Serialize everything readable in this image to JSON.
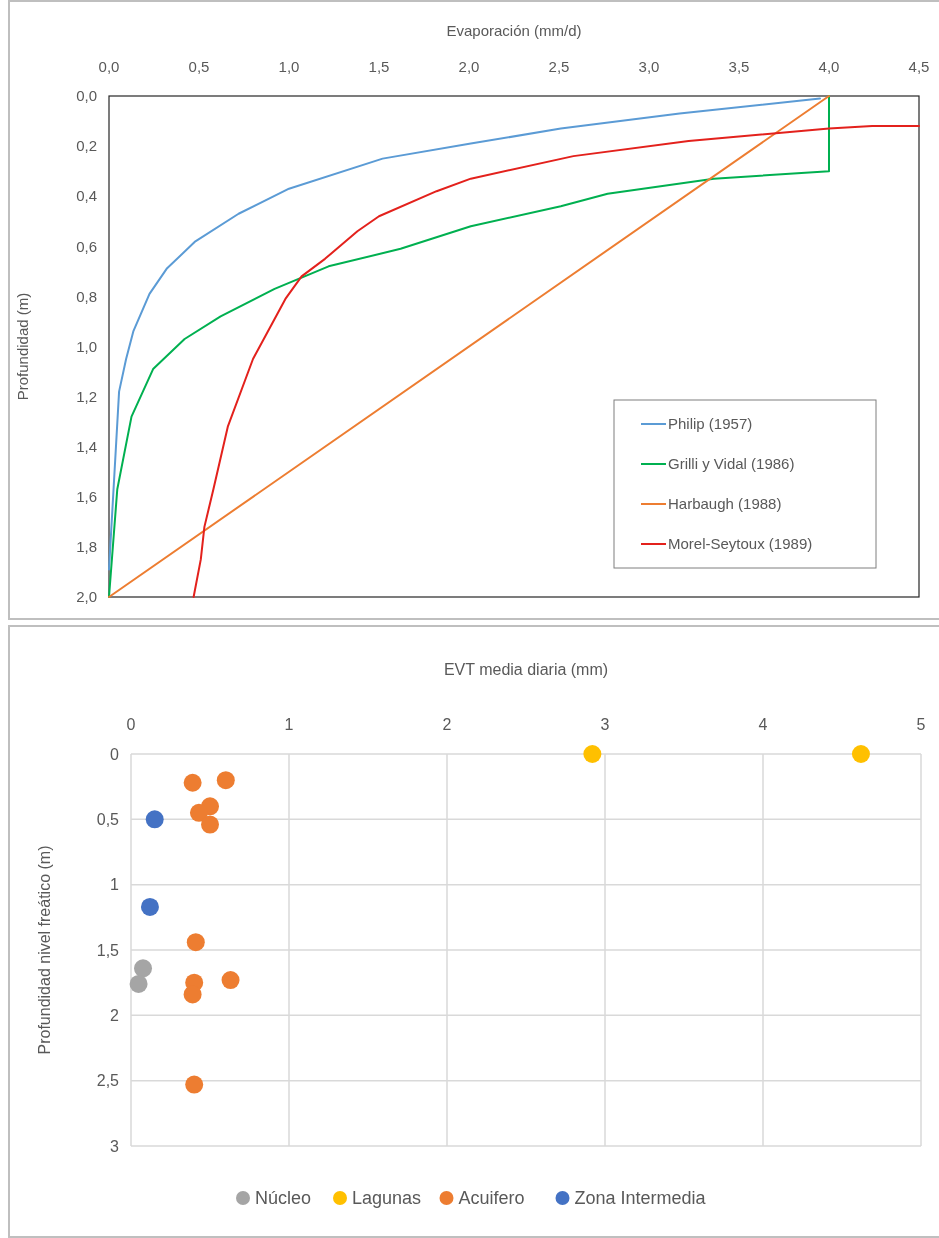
{
  "chart_data": [
    {
      "type": "line",
      "xlabel": "Evaporación (mm/d)",
      "ylabel": "Profundidad (m)",
      "xlim": [
        0,
        4.5
      ],
      "ylim": [
        2,
        0
      ],
      "xticks": [
        {
          "value": 0,
          "label": "0,0"
        },
        {
          "value": 0.5,
          "label": "0,5"
        },
        {
          "value": 1,
          "label": "1,0"
        },
        {
          "value": 1.5,
          "label": "1,5"
        },
        {
          "value": 2,
          "label": "2,0"
        },
        {
          "value": 2.5,
          "label": "2,5"
        },
        {
          "value": 3,
          "label": "3,0"
        },
        {
          "value": 3.5,
          "label": "3,5"
        },
        {
          "value": 4,
          "label": "4,0"
        },
        {
          "value": 4.5,
          "label": "4,5"
        }
      ],
      "yticks": [
        {
          "value": 0,
          "label": "0,0"
        },
        {
          "value": 0.2,
          "label": "0,2"
        },
        {
          "value": 0.4,
          "label": "0,4"
        },
        {
          "value": 0.6,
          "label": "0,6"
        },
        {
          "value": 0.8,
          "label": "0,8"
        },
        {
          "value": 1,
          "label": "1,0"
        },
        {
          "value": 1.2,
          "label": "1,2"
        },
        {
          "value": 1.4,
          "label": "1,4"
        },
        {
          "value": 1.6,
          "label": "1,6"
        },
        {
          "value": 1.8,
          "label": "1,8"
        },
        {
          "value": 2,
          "label": "2,0"
        }
      ],
      "grid": false,
      "legend": "bottom right",
      "series": [
        {
          "name": "Philip (1957)",
          "color": "#5b9bd5",
          "x": [
            0,
            0.056,
            0.095,
            0.135,
            0.225,
            0.32,
            0.48,
            0.72,
            1.0,
            1.52,
            2.01,
            2.51,
            3.17,
            3.95
          ],
          "values": [
            1.89,
            1.18,
            1.05,
            0.94,
            0.79,
            0.69,
            0.58,
            0.47,
            0.37,
            0.25,
            0.19,
            0.13,
            0.07,
            0.01
          ]
        },
        {
          "name": "Grilli y Vidal (1986)",
          "color": "#00b050",
          "x": [
            0,
            0.046,
            0.125,
            0.245,
            0.42,
            0.62,
            0.92,
            1.22,
            1.62,
            2.01,
            2.51,
            2.77,
            3.36,
            4.0,
            4.0
          ],
          "values": [
            2.0,
            1.57,
            1.28,
            1.09,
            0.97,
            0.88,
            0.77,
            0.68,
            0.61,
            0.52,
            0.44,
            0.39,
            0.33,
            0.3,
            0.0
          ]
        },
        {
          "name": "Harbaugh (1988)",
          "color": "#ed7d31",
          "x": [
            0,
            4.0
          ],
          "values": [
            2.0,
            0.0
          ]
        },
        {
          "name": "Morel-Seytoux (1989)",
          "color": "#e3211c",
          "x": [
            0.47,
            0.51,
            0.53,
            0.58,
            0.66,
            0.8,
            0.98,
            1.07,
            1.2,
            1.38,
            1.5,
            1.82,
            2.01,
            2.58,
            3.22,
            4.0,
            4.24,
            4.5
          ],
          "values": [
            2.0,
            1.85,
            1.72,
            1.57,
            1.32,
            1.05,
            0.81,
            0.72,
            0.65,
            0.54,
            0.48,
            0.38,
            0.33,
            0.24,
            0.18,
            0.13,
            0.12,
            0.12
          ]
        }
      ]
    },
    {
      "type": "scatter",
      "xlabel": "EVT media diaria (mm)",
      "ylabel": "Profundidad nivel freático (m)",
      "xlim": [
        0,
        5
      ],
      "ylim": [
        3,
        0
      ],
      "xticks": [
        0,
        1,
        2,
        3,
        4,
        5
      ],
      "yticks": [
        0,
        {
          "value": 0.5,
          "label": "0,5"
        },
        1,
        {
          "value": 1.5,
          "label": "1,5"
        },
        2,
        {
          "value": 2.5,
          "label": "2,5"
        },
        3
      ],
      "grid": true,
      "legend": "bottom",
      "marker": "circle",
      "series": [
        {
          "name": "Núcleo",
          "color": "#a5a5a5",
          "x": [
            0.076,
            0.048
          ],
          "values": [
            1.64,
            1.76
          ]
        },
        {
          "name": "Lagunas",
          "color": "#ffc000",
          "x": [
            2.92,
            4.62
          ],
          "values": [
            0,
            0
          ]
        },
        {
          "name": "Acuifero",
          "color": "#ed7d31",
          "x": [
            0.39,
            0.6,
            0.5,
            0.43,
            0.5,
            0.41,
            0.4,
            0.63,
            0.39,
            0.4
          ],
          "values": [
            0.22,
            0.2,
            0.4,
            0.45,
            0.54,
            1.44,
            1.75,
            1.73,
            1.84,
            2.53
          ]
        },
        {
          "name": "Zona Intermedia",
          "color": "#4472c4",
          "x": [
            0.15,
            0.12
          ],
          "values": [
            0.5,
            1.17
          ]
        }
      ]
    }
  ]
}
